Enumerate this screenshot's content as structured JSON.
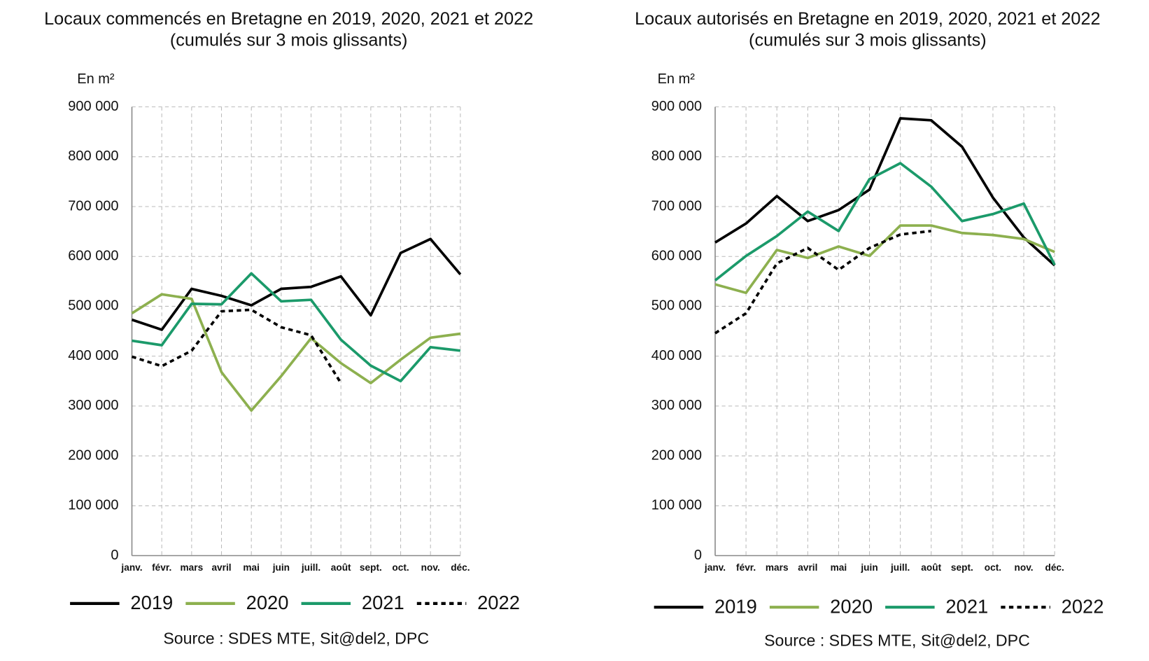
{
  "chart_data": [
    {
      "type": "line",
      "title": "Locaux commencés en Bretagne en 2019, 2020, 2021 et 2022",
      "subtitle": "(cumulés sur 3 mois glissants)",
      "y_label": "En m²",
      "source": "Source : SDES MTE, Sit@del2, DPC",
      "categories": [
        "janv.",
        "févr.",
        "mars",
        "avril",
        "mai",
        "juin",
        "juill.",
        "août",
        "sept.",
        "oct.",
        "nov.",
        "déc."
      ],
      "ylim": [
        0,
        900000
      ],
      "yticks": [
        0,
        {
          "value": 100000,
          "label": "100 000"
        },
        {
          "value": 200000,
          "label": "200 000"
        },
        {
          "value": 300000,
          "label": "300 000"
        },
        {
          "value": 400000,
          "label": "400 000"
        },
        {
          "value": 500000,
          "label": "500 000"
        },
        {
          "value": 600000,
          "label": "600 000"
        },
        {
          "value": 700000,
          "label": "700 000"
        },
        {
          "value": 800000,
          "label": "800 000"
        },
        {
          "value": 900000,
          "label": "900 000"
        }
      ],
      "grid": true,
      "legend": "bottom",
      "series": [
        {
          "name": "2019",
          "color": "#000000",
          "dashed": false,
          "values": [
            473000,
            453000,
            535000,
            521000,
            502000,
            535000,
            539000,
            560000,
            482000,
            607000,
            635000,
            564000
          ]
        },
        {
          "name": "2020",
          "color": "#8db04f",
          "dashed": false,
          "values": [
            486000,
            524000,
            515000,
            368000,
            291000,
            360000,
            436000,
            386000,
            346000,
            393000,
            437000,
            445000
          ]
        },
        {
          "name": "2021",
          "color": "#1b9a6a",
          "dashed": false,
          "values": [
            431000,
            422000,
            505000,
            504000,
            566000,
            510000,
            513000,
            433000,
            381000,
            350000,
            418000,
            411000
          ]
        },
        {
          "name": "2022",
          "color": "#000000",
          "dashed": true,
          "values": [
            399000,
            380000,
            411000,
            490000,
            493000,
            458000,
            442000,
            346000,
            null,
            null,
            null,
            null
          ]
        }
      ]
    },
    {
      "type": "line",
      "title": "Locaux autorisés en Bretagne en 2019, 2020, 2021 et 2022",
      "subtitle": "(cumulés sur 3 mois glissants)",
      "y_label": "En m²",
      "source": "Source : SDES MTE, Sit@del2, DPC",
      "categories": [
        "janv.",
        "févr.",
        "mars",
        "avril",
        "mai",
        "juin",
        "juill.",
        "août",
        "sept.",
        "oct.",
        "nov.",
        "déc."
      ],
      "ylim": [
        0,
        900000
      ],
      "yticks": [
        0,
        {
          "value": 100000,
          "label": "100 000"
        },
        {
          "value": 200000,
          "label": "200 000"
        },
        {
          "value": 300000,
          "label": "300 000"
        },
        {
          "value": 400000,
          "label": "400 000"
        },
        {
          "value": 500000,
          "label": "500 000"
        },
        {
          "value": 600000,
          "label": "600 000"
        },
        {
          "value": 700000,
          "label": "700 000"
        },
        {
          "value": 800000,
          "label": "800 000"
        },
        {
          "value": 900000,
          "label": "900 000"
        }
      ],
      "grid": true,
      "legend": "bottom",
      "series": [
        {
          "name": "2019",
          "color": "#000000",
          "dashed": false,
          "values": [
            628000,
            666000,
            721000,
            671000,
            693000,
            734000,
            877000,
            873000,
            820000,
            718000,
            638000,
            582000
          ]
        },
        {
          "name": "2020",
          "color": "#8db04f",
          "dashed": false,
          "values": [
            544000,
            527000,
            613000,
            597000,
            620000,
            601000,
            662000,
            662000,
            647000,
            643000,
            635000,
            609000
          ]
        },
        {
          "name": "2021",
          "color": "#1b9a6a",
          "dashed": false,
          "values": [
            552000,
            601000,
            641000,
            690000,
            651000,
            755000,
            787000,
            740000,
            671000,
            685000,
            706000,
            583000
          ]
        },
        {
          "name": "2022",
          "color": "#000000",
          "dashed": true,
          "values": [
            446000,
            486000,
            586000,
            617000,
            573000,
            617000,
            644000,
            651000,
            null,
            null,
            null,
            null
          ]
        }
      ]
    }
  ]
}
